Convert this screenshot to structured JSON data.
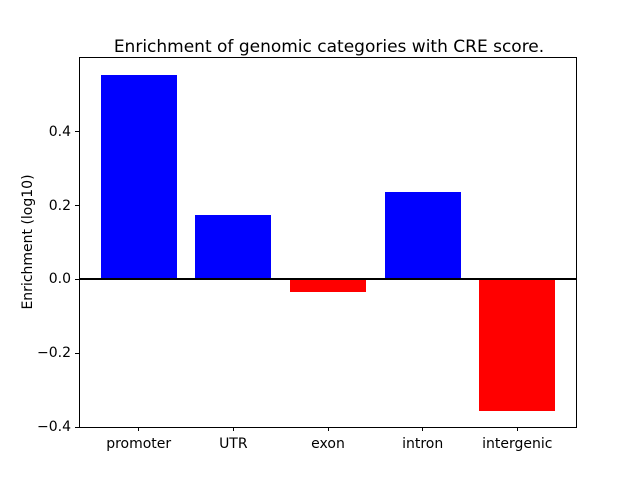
{
  "chart_data": {
    "type": "bar",
    "title": "Enrichment of genomic categories with CRE score.",
    "xlabel": "",
    "ylabel": "Enrichment (log10)",
    "categories": [
      "promoter",
      "UTR",
      "exon",
      "intron",
      "intergenic"
    ],
    "values": [
      0.553,
      0.175,
      -0.035,
      0.236,
      -0.357
    ],
    "bar_colors": [
      "#0000ff",
      "#0000ff",
      "#ff0000",
      "#0000ff",
      "#ff0000"
    ],
    "positive_color": "#0000ff",
    "negative_color": "#ff0000",
    "yticks": [
      -0.4,
      -0.2,
      0.0,
      0.2,
      0.4
    ],
    "ytick_labels": [
      "−0.4",
      "−0.2",
      "0.0",
      "0.2",
      "0.4"
    ],
    "ylim": [
      -0.4,
      0.6
    ],
    "xlim": [
      -0.62,
      4.62
    ],
    "bar_width": 0.8,
    "zero_line": true,
    "grid": false,
    "legend": null,
    "background_color": "#ffffff",
    "axis_color": "#000000"
  }
}
